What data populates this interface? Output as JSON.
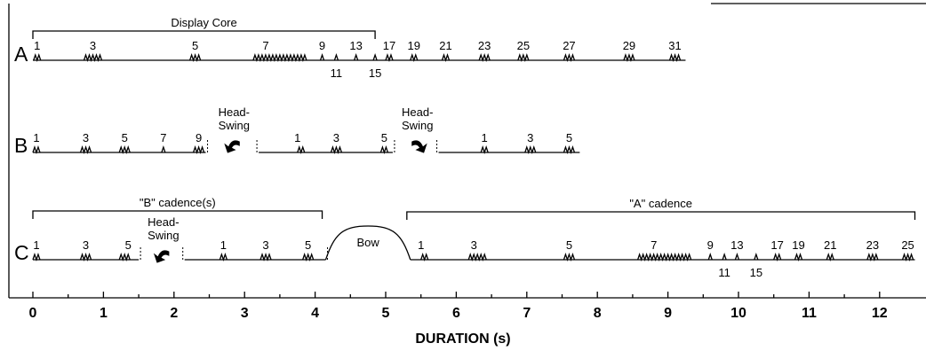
{
  "axis": {
    "title": "DURATION (s)",
    "ticks": [
      "0",
      "1",
      "2",
      "3",
      "4",
      "5",
      "6",
      "7",
      "8",
      "9",
      "10",
      "11",
      "12"
    ]
  },
  "rows": [
    {
      "label": "A",
      "segments": [
        [
          0,
          9.25
        ]
      ],
      "bursts": [
        {
          "x": 0.06,
          "n": 2
        },
        {
          "x": 0.85,
          "n": 5
        },
        {
          "x": 2.3,
          "n": 3
        },
        {
          "x": 3.5,
          "n": 15
        },
        {
          "x": 4.1,
          "n": 1
        },
        {
          "x": 4.3,
          "n": 1
        },
        {
          "x": 4.58,
          "n": 1
        },
        {
          "x": 4.85,
          "n": 1
        },
        {
          "x": 5.05,
          "n": 2
        },
        {
          "x": 5.4,
          "n": 2
        },
        {
          "x": 5.85,
          "n": 2
        },
        {
          "x": 6.4,
          "n": 3
        },
        {
          "x": 6.95,
          "n": 3
        },
        {
          "x": 7.6,
          "n": 3
        },
        {
          "x": 8.45,
          "n": 3
        },
        {
          "x": 9.1,
          "n": 3
        }
      ],
      "labels": [
        {
          "t": "1",
          "x": 0.06,
          "pos": "up"
        },
        {
          "t": "3",
          "x": 0.85,
          "pos": "up"
        },
        {
          "t": "5",
          "x": 2.3,
          "pos": "up"
        },
        {
          "t": "7",
          "x": 3.3,
          "pos": "up"
        },
        {
          "t": "9",
          "x": 4.1,
          "pos": "up"
        },
        {
          "t": "11",
          "x": 4.3,
          "pos": "down"
        },
        {
          "t": "13",
          "x": 4.58,
          "pos": "up"
        },
        {
          "t": "15",
          "x": 4.85,
          "pos": "down"
        },
        {
          "t": "17",
          "x": 5.05,
          "pos": "up"
        },
        {
          "t": "19",
          "x": 5.4,
          "pos": "up"
        },
        {
          "t": "21",
          "x": 5.85,
          "pos": "up"
        },
        {
          "t": "23",
          "x": 6.4,
          "pos": "up"
        },
        {
          "t": "25",
          "x": 6.95,
          "pos": "up"
        },
        {
          "t": "27",
          "x": 7.6,
          "pos": "up"
        },
        {
          "t": "29",
          "x": 8.45,
          "pos": "up"
        },
        {
          "t": "31",
          "x": 9.1,
          "pos": "up"
        }
      ]
    },
    {
      "label": "B",
      "segments": [
        [
          0,
          2.45
        ],
        [
          3.2,
          5.1
        ],
        [
          5.75,
          7.75
        ]
      ],
      "bursts": [
        {
          "x": 0.05,
          "n": 2
        },
        {
          "x": 0.75,
          "n": 3
        },
        {
          "x": 1.3,
          "n": 3
        },
        {
          "x": 1.85,
          "n": 1
        },
        {
          "x": 2.35,
          "n": 3
        },
        {
          "x": 3.8,
          "n": 2
        },
        {
          "x": 4.3,
          "n": 3
        },
        {
          "x": 4.98,
          "n": 2
        },
        {
          "x": 6.4,
          "n": 2
        },
        {
          "x": 7.05,
          "n": 3
        },
        {
          "x": 7.6,
          "n": 3
        }
      ],
      "labels": [
        {
          "t": "1",
          "x": 0.05,
          "pos": "up"
        },
        {
          "t": "3",
          "x": 0.75,
          "pos": "up"
        },
        {
          "t": "5",
          "x": 1.3,
          "pos": "up"
        },
        {
          "t": "7",
          "x": 1.85,
          "pos": "up"
        },
        {
          "t": "9",
          "x": 2.35,
          "pos": "up"
        },
        {
          "t": "1",
          "x": 3.75,
          "pos": "up"
        },
        {
          "t": "3",
          "x": 4.3,
          "pos": "up"
        },
        {
          "t": "5",
          "x": 4.98,
          "pos": "up"
        },
        {
          "t": "1",
          "x": 6.4,
          "pos": "up"
        },
        {
          "t": "3",
          "x": 7.05,
          "pos": "up"
        },
        {
          "t": "5",
          "x": 7.6,
          "pos": "up"
        }
      ],
      "head_swings": [
        {
          "text1": "Head-",
          "text2": "Swing",
          "x": 2.85,
          "dir": "left"
        },
        {
          "text1": "Head-",
          "text2": "Swing",
          "x": 5.45,
          "dir": "right"
        }
      ]
    },
    {
      "label": "C",
      "segments": [
        [
          0,
          1.5
        ],
        [
          2.15,
          4.15
        ],
        [
          5.35,
          12.5
        ]
      ],
      "bow": {
        "start": 4.15,
        "end": 5.35,
        "label": "Bow"
      },
      "bursts": [
        {
          "x": 0.05,
          "n": 2
        },
        {
          "x": 0.75,
          "n": 3
        },
        {
          "x": 1.3,
          "n": 3
        },
        {
          "x": 2.7,
          "n": 2
        },
        {
          "x": 3.3,
          "n": 3
        },
        {
          "x": 3.9,
          "n": 3
        },
        {
          "x": 5.55,
          "n": 2
        },
        {
          "x": 6.3,
          "n": 5
        },
        {
          "x": 7.6,
          "n": 3
        },
        {
          "x": 8.95,
          "n": 15
        },
        {
          "x": 9.6,
          "n": 1
        },
        {
          "x": 9.8,
          "n": 1
        },
        {
          "x": 9.98,
          "n": 1
        },
        {
          "x": 10.25,
          "n": 1
        },
        {
          "x": 10.55,
          "n": 2
        },
        {
          "x": 10.85,
          "n": 2
        },
        {
          "x": 11.3,
          "n": 2
        },
        {
          "x": 11.9,
          "n": 3
        },
        {
          "x": 12.4,
          "n": 3
        }
      ],
      "labels": [
        {
          "t": "1",
          "x": 0.05,
          "pos": "up"
        },
        {
          "t": "3",
          "x": 0.75,
          "pos": "up"
        },
        {
          "t": "5",
          "x": 1.35,
          "pos": "up"
        },
        {
          "t": "1",
          "x": 2.7,
          "pos": "up"
        },
        {
          "t": "3",
          "x": 3.3,
          "pos": "up"
        },
        {
          "t": "5",
          "x": 3.9,
          "pos": "up"
        },
        {
          "t": "1",
          "x": 5.5,
          "pos": "up"
        },
        {
          "t": "3",
          "x": 6.25,
          "pos": "up"
        },
        {
          "t": "5",
          "x": 7.6,
          "pos": "up"
        },
        {
          "t": "7",
          "x": 8.8,
          "pos": "up"
        },
        {
          "t": "9",
          "x": 9.6,
          "pos": "up"
        },
        {
          "t": "11",
          "x": 9.8,
          "pos": "down"
        },
        {
          "t": "13",
          "x": 9.98,
          "pos": "up"
        },
        {
          "t": "15",
          "x": 10.25,
          "pos": "down"
        },
        {
          "t": "17",
          "x": 10.55,
          "pos": "up"
        },
        {
          "t": "19",
          "x": 10.85,
          "pos": "up"
        },
        {
          "t": "21",
          "x": 11.3,
          "pos": "up"
        },
        {
          "t": "23",
          "x": 11.9,
          "pos": "up"
        },
        {
          "t": "25",
          "x": 12.4,
          "pos": "up"
        }
      ],
      "head_swings": [
        {
          "text1": "Head-",
          "text2": "Swing",
          "x": 1.85,
          "dir": "left"
        }
      ]
    }
  ],
  "brackets": [
    {
      "label": "Display Core",
      "row": 0,
      "start": 0,
      "end": 4.85
    },
    {
      "label": "\"B\" cadence(s)",
      "row": 2,
      "start": 0,
      "end": 4.1
    },
    {
      "label": "\"A\" cadence",
      "row": 2,
      "start": 5.3,
      "end": 12.5
    }
  ]
}
